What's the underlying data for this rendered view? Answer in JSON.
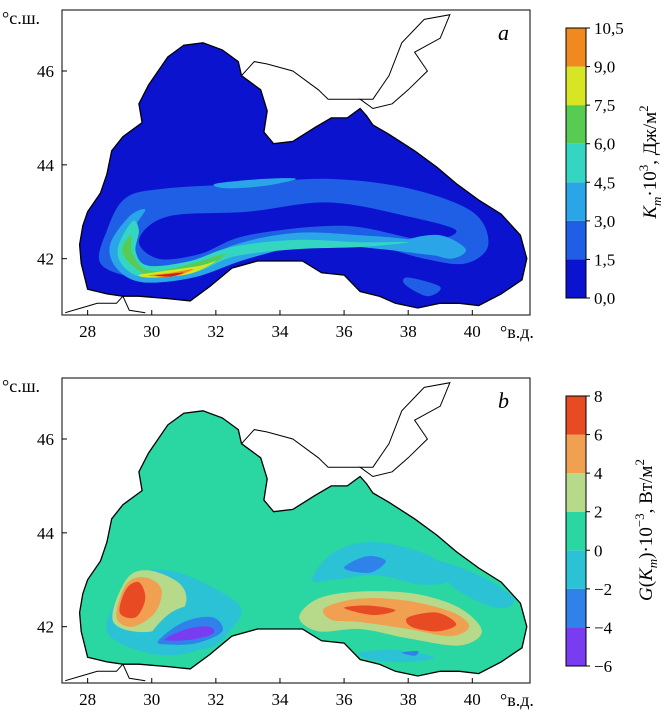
{
  "chart_data": [
    {
      "type": "heatmap",
      "panel_label": "a",
      "x_ticks": [
        "28",
        "30",
        "32",
        "34",
        "36",
        "38",
        "40"
      ],
      "x_tick_values": [
        28,
        30,
        32,
        34,
        36,
        38,
        40
      ],
      "x_unit": "°в.д.",
      "y_ticks": [
        "42",
        "44",
        "46"
      ],
      "y_tick_values": [
        42,
        44,
        46
      ],
      "y_unit": "°с.ш.",
      "xlim": [
        27.2,
        41.8
      ],
      "ylim": [
        40.8,
        47.3
      ],
      "colorbar": {
        "label_text": "·10",
        "label_sup": "3",
        "label_unit": ", Дж/м",
        "label_unit_sup": "2",
        "label_symbol": "K",
        "label_sub": "m",
        "tick_labels": [
          "0,0",
          "1,5",
          "3,0",
          "4,5",
          "6,0",
          "7,5",
          "9,0",
          "10,5"
        ],
        "levels": [
          0,
          1.5,
          3,
          4.5,
          6,
          7.5,
          9,
          10.5
        ],
        "colors": [
          "#0b13cf",
          "#1e5fe6",
          "#2aa6e8",
          "#34d6c2",
          "#58cc52",
          "#d6e624",
          "#f08a1e",
          "#e01a14"
        ]
      },
      "field_features": [
        {
          "description": "western boundary current band",
          "level_range": [
            3,
            6
          ]
        },
        {
          "description": "southern jet maximum near 30.5E 41.6N",
          "value": 10.5
        },
        {
          "description": "eastern gyre ring",
          "level_range": [
            1.5,
            4.5
          ]
        }
      ]
    },
    {
      "type": "heatmap",
      "panel_label": "b",
      "x_ticks": [
        "28",
        "30",
        "32",
        "34",
        "36",
        "38",
        "40"
      ],
      "x_tick_values": [
        28,
        30,
        32,
        34,
        36,
        38,
        40
      ],
      "x_unit": "°в.д.",
      "y_ticks": [
        "42",
        "44",
        "46"
      ],
      "y_tick_values": [
        42,
        44,
        46
      ],
      "y_unit": "°с.ш.",
      "xlim": [
        27.2,
        41.8
      ],
      "ylim": [
        40.8,
        47.3
      ],
      "colorbar": {
        "label_symbol": "G",
        "label_paren_open": "(",
        "label_inner": "K",
        "label_sub": "m",
        "label_paren_close": ")",
        "label_text": "·10",
        "label_sup": "−3",
        "label_unit": ", Вт/м",
        "label_unit_sup": "2",
        "tick_labels": [
          "−6",
          "−4",
          "−2",
          "0",
          "2",
          "4",
          "6",
          "8"
        ],
        "levels": [
          -6,
          -4,
          -2,
          0,
          2,
          4,
          6,
          8
        ],
        "colors": [
          "#7a3cf0",
          "#2f82ea",
          "#2bc2d6",
          "#2ad6a2",
          "#b7d98a",
          "#f0a050",
          "#e84a24"
        ]
      },
      "field_features": [
        {
          "description": "positive maximum west near 29.3E 42.6N",
          "value": 6
        },
        {
          "description": "negative minimum near 31.2E 41.8N",
          "value": -6
        },
        {
          "description": "positive band east near 38.5E 42.1N",
          "value": 8
        },
        {
          "description": "negative area near 36.5E 43.2N",
          "value": -2
        }
      ]
    }
  ],
  "colors": {
    "land": "#ffffff",
    "coast": "#000000"
  }
}
